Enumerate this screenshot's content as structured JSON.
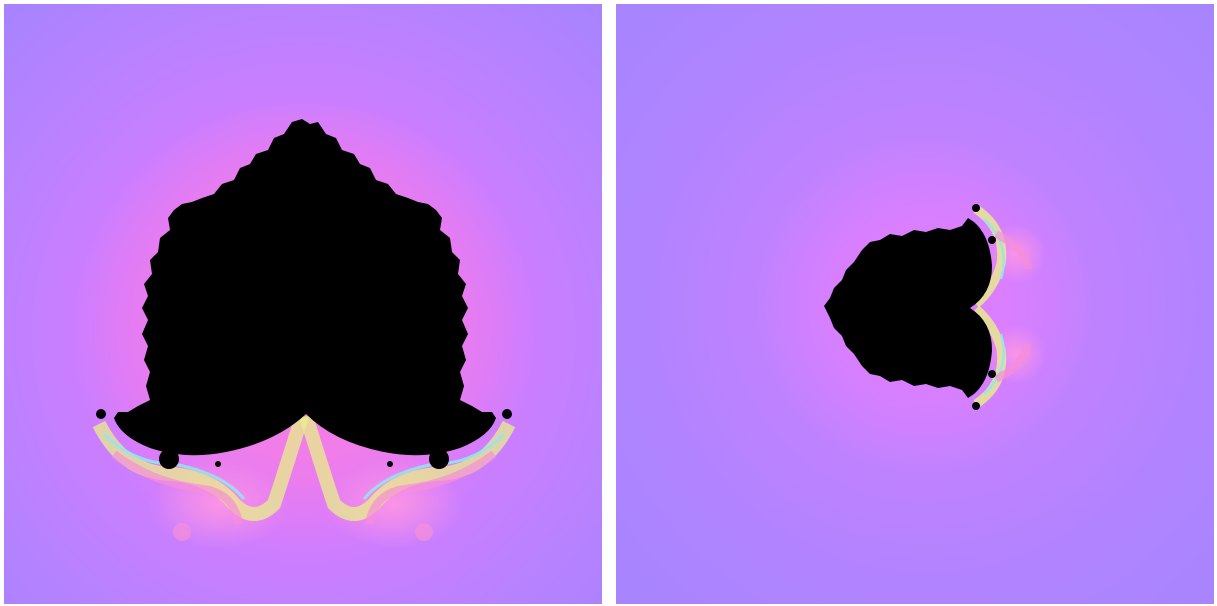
{
  "figure": {
    "panels": [
      {
        "id": "left",
        "subject": "fractal-set-upright"
      },
      {
        "id": "right",
        "subject": "fractal-set-rotated"
      }
    ],
    "colors": {
      "background_outer": "#a983ff",
      "halo_mid": "#c67dff",
      "halo_inner": "#f27df0",
      "set_fill": "#000000",
      "filament_yellow": "#e7f08a",
      "filament_pink": "#f58fd7",
      "filament_cyan": "#8fe7ee",
      "divider": "#ffffff"
    }
  }
}
